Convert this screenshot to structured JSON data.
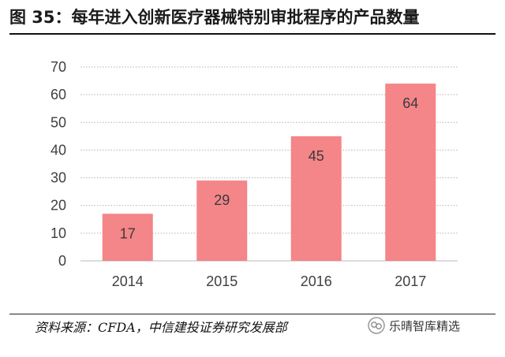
{
  "title": "图  35：每年进入创新医疗器械特别审批程序的产品数量",
  "source": "资料来源：CFDA，中信建投证券研究发展部",
  "watermark": "乐晴智库精选",
  "colors": {
    "bar": "#F48588",
    "grid": "#b3b3b3",
    "axis": "#d0d0d0"
  },
  "chart_data": {
    "type": "bar",
    "categories": [
      "2014",
      "2015",
      "2016",
      "2017"
    ],
    "values": [
      17,
      29,
      45,
      64
    ],
    "data_labels": [
      "17",
      "29",
      "45",
      "64"
    ],
    "xlabel": "",
    "ylabel": "",
    "ylim": [
      0,
      70
    ],
    "yticks": [
      "0",
      "10",
      "20",
      "30",
      "40",
      "50",
      "60",
      "70"
    ],
    "grid": true,
    "legend": "none"
  }
}
